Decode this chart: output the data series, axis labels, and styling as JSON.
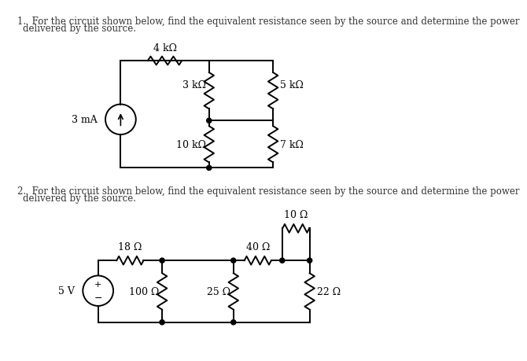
{
  "background_color": "#ffffff",
  "circuit1": {
    "problem_text": "1.  For the circuit shown below, find the equivalent resistance seen by the source and determine the power",
    "problem_text2": "delivered by the source.",
    "source_label": "3 mA",
    "r1_label": "4 kΩ",
    "r2_label": "3 kΩ",
    "r3_label": "5 kΩ",
    "r4_label": "10 kΩ",
    "r5_label": "7 kΩ"
  },
  "circuit2": {
    "problem_text": "2.  For the circuit shown below, find the equivalent resistance seen by the source and determine the power",
    "problem_text2": "delivered by the source.",
    "source_label": "5 V",
    "r1_label": "18 Ω",
    "r2_label": "10 Ω",
    "r3_label": "40 Ω",
    "r4_label": "100 Ω",
    "r5_label": "25 Ω",
    "r6_label": "22 Ω"
  }
}
